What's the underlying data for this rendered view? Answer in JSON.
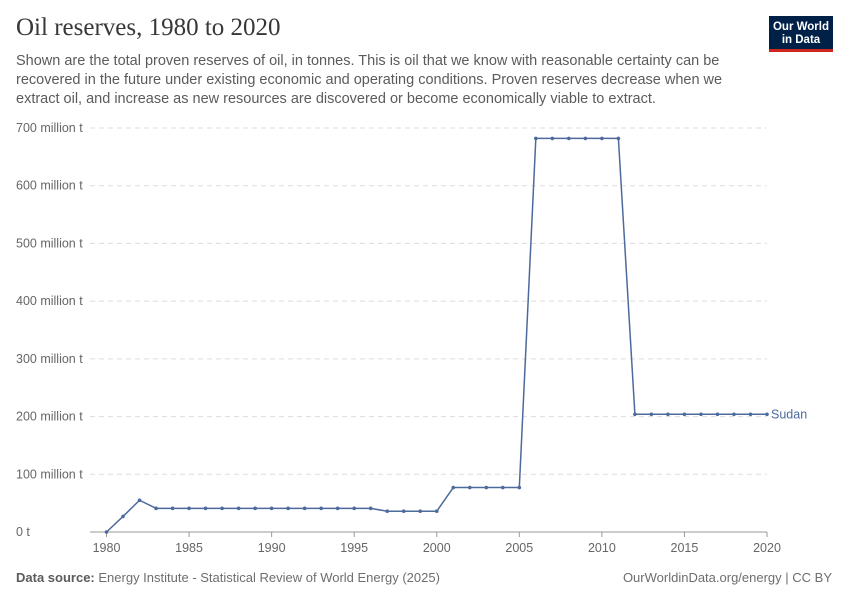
{
  "header": {
    "title": "Oil reserves, 1980 to 2020",
    "subtitle": "Shown are the total proven reserves of oil, in tonnes. This is oil that we know with reasonable certainty can be recovered in the future under existing economic and operating conditions. Proven reserves decrease when we extract oil, and increase as new resources are discovered or become economically viable to extract.",
    "logo_line1": "Our World",
    "logo_line2": "in Data"
  },
  "footer": {
    "source_label": "Data source:",
    "source_text": "Energy Institute - Statistical Review of World Energy (2025)",
    "site": "OurWorldinData.org/energy | CC BY"
  },
  "colors": {
    "series": "#4c6a9c",
    "grid": "#dddddd",
    "axis": "#999999",
    "logo_bg": "#002147",
    "logo_accent": "#ce261e"
  },
  "chart_data": {
    "type": "line",
    "title": "Oil reserves, 1980 to 2020",
    "xlabel": "",
    "ylabel": "",
    "xlim": [
      1979,
      2020
    ],
    "ylim": [
      0,
      700000000
    ],
    "grid": true,
    "y_ticks": [
      {
        "value": 0,
        "label": "0 t"
      },
      {
        "value": 100000000,
        "label": "100 million t"
      },
      {
        "value": 200000000,
        "label": "200 million t"
      },
      {
        "value": 300000000,
        "label": "300 million t"
      },
      {
        "value": 400000000,
        "label": "400 million t"
      },
      {
        "value": 500000000,
        "label": "500 million t"
      },
      {
        "value": 600000000,
        "label": "600 million t"
      },
      {
        "value": 700000000,
        "label": "700 million t"
      }
    ],
    "x_ticks": [
      {
        "value": 1980,
        "label": "1980"
      },
      {
        "value": 1985,
        "label": "1985"
      },
      {
        "value": 1990,
        "label": "1990"
      },
      {
        "value": 1995,
        "label": "1995"
      },
      {
        "value": 2000,
        "label": "2000"
      },
      {
        "value": 2005,
        "label": "2005"
      },
      {
        "value": 2010,
        "label": "2010"
      },
      {
        "value": 2015,
        "label": "2015"
      },
      {
        "value": 2020,
        "label": "2020"
      }
    ],
    "series": [
      {
        "name": "Sudan",
        "x": [
          1980,
          1981,
          1982,
          1983,
          1984,
          1985,
          1986,
          1987,
          1988,
          1989,
          1990,
          1991,
          1992,
          1993,
          1994,
          1995,
          1996,
          1997,
          1998,
          1999,
          2000,
          2001,
          2002,
          2003,
          2004,
          2005,
          2006,
          2007,
          2008,
          2009,
          2010,
          2011,
          2012,
          2013,
          2014,
          2015,
          2016,
          2017,
          2018,
          2019,
          2020
        ],
        "y": [
          0,
          27000000,
          55000000,
          41000000,
          41000000,
          41000000,
          41000000,
          41000000,
          41000000,
          41000000,
          41000000,
          41000000,
          41000000,
          41000000,
          41000000,
          41000000,
          41000000,
          36000000,
          36000000,
          36000000,
          36000000,
          77000000,
          77000000,
          77000000,
          77000000,
          77000000,
          682000000,
          682000000,
          682000000,
          682000000,
          682000000,
          682000000,
          204000000,
          204000000,
          204000000,
          204000000,
          204000000,
          204000000,
          204000000,
          204000000,
          204000000
        ]
      }
    ]
  }
}
